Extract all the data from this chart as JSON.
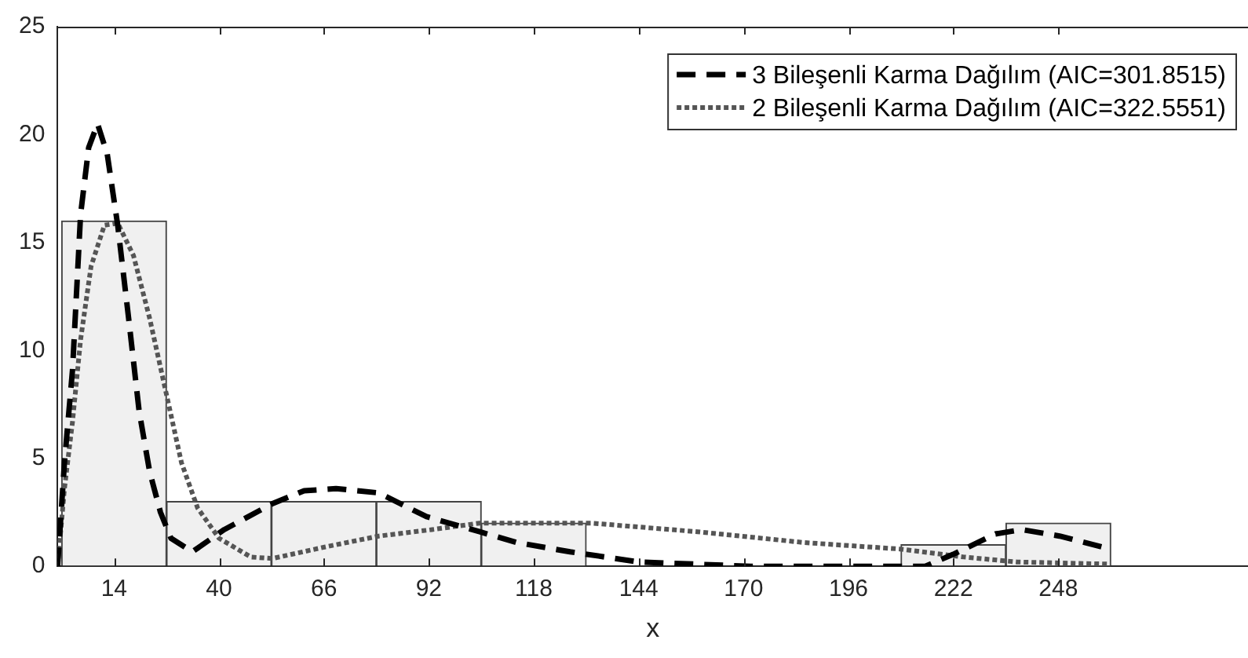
{
  "chart_data": {
    "type": "histogram",
    "xlabel": "x",
    "bins": [
      1,
      27,
      53,
      79,
      105,
      131,
      157,
      183,
      209,
      235,
      261
    ],
    "values": [
      16,
      3,
      3,
      3,
      2,
      0,
      0,
      0,
      1,
      2
    ],
    "color": "#f0f0f0",
    "xlim": [
      0,
      295
    ],
    "xticks": [
      14,
      40,
      66,
      92,
      118,
      144,
      170,
      196,
      222,
      248
    ],
    "ylim": [
      0,
      25
    ],
    "yticks": [
      0,
      5,
      10,
      15,
      20,
      25
    ],
    "grid": false,
    "legend": "top right",
    "series": [
      {
        "name": "3 Bileşenli Karma Dağılım (AIC=301.8515)",
        "type": "line",
        "line_style": "dashed",
        "color": "#000000",
        "x": [
          0,
          1.7,
          3.7,
          5.7,
          7.7,
          9.9,
          12.3,
          14.9,
          17.6,
          20.2,
          22.8,
          25.5,
          28.1,
          33.4,
          41.3,
          53.2,
          61.1,
          69,
          79.6,
          91.4,
          104.6,
          113.8,
          127,
          144.1,
          171.8,
          215,
          221.9,
          232.4,
          239,
          248.3,
          260.9
        ],
        "values": [
          0,
          4.8,
          9.1,
          16.3,
          19.4,
          20.5,
          19.1,
          15.8,
          11.5,
          7.2,
          4.4,
          2.5,
          1.3,
          0.67,
          1.7,
          2.9,
          3.5,
          3.6,
          3.4,
          2.3,
          1.6,
          1.1,
          0.67,
          0.2,
          0,
          0,
          0.55,
          1.5,
          1.7,
          1.4,
          0.8
        ]
      },
      {
        "name": "2 Bileşenli Karma Dağılım (AIC=322.5551)",
        "type": "line",
        "line_style": "dotted",
        "color": "#555555",
        "x": [
          0,
          1.7,
          3.7,
          5.7,
          8.3,
          11.6,
          14.9,
          18.8,
          22.8,
          26.7,
          30.7,
          34.7,
          40,
          47.9,
          53.2,
          66.4,
          79.6,
          92.8,
          104.6,
          120.4,
          132.3,
          158.6,
          185,
          208.7,
          224.6,
          237.8,
          260.9
        ],
        "values": [
          0,
          3.6,
          6.7,
          10.5,
          13.9,
          15.8,
          15.9,
          14.4,
          11.5,
          8.2,
          4.8,
          2.7,
          1.3,
          0.43,
          0.36,
          0.9,
          1.4,
          1.7,
          2,
          2,
          2,
          1.6,
          1.1,
          0.8,
          0.43,
          0.2,
          0.1
        ]
      }
    ]
  }
}
